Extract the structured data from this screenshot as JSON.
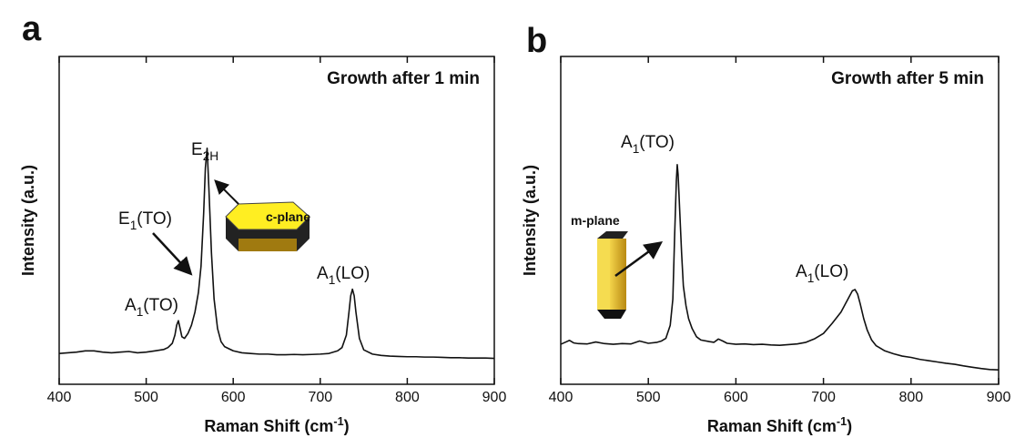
{
  "chart_data": [
    {
      "type": "line",
      "panel_label": "a",
      "title": "Growth after 1 min",
      "x_label": {
        "text": "Raman Shift (cm",
        "superscript": "-1",
        "suffix": ")"
      },
      "y_label": "Intensity (a.u.)",
      "xlim": [
        400,
        900
      ],
      "xticks": [
        400,
        500,
        600,
        700,
        800,
        900
      ],
      "ylim": [
        0,
        100
      ],
      "color": "#111111",
      "x": [
        400,
        410,
        420,
        430,
        440,
        450,
        460,
        470,
        480,
        490,
        500,
        510,
        520,
        525,
        530,
        533,
        535,
        537,
        539,
        541,
        544,
        548,
        552,
        556,
        560,
        563,
        566,
        568,
        570,
        572,
        575,
        578,
        582,
        586,
        590,
        600,
        610,
        620,
        630,
        640,
        650,
        660,
        670,
        680,
        690,
        700,
        710,
        720,
        725,
        730,
        733,
        735,
        737,
        739,
        741,
        745,
        750,
        760,
        770,
        780,
        790,
        800,
        810,
        820,
        830,
        840,
        850,
        860,
        870,
        880,
        890,
        900
      ],
      "values": [
        9.4,
        9.6,
        9.8,
        10.2,
        10.2,
        9.8,
        9.6,
        9.8,
        10.0,
        9.6,
        9.8,
        10.2,
        10.6,
        11.2,
        12.5,
        15,
        18,
        19.4,
        17,
        14.5,
        14,
        15.5,
        18,
        22,
        28,
        36,
        52,
        66,
        72,
        60,
        40,
        26,
        17,
        13,
        11.5,
        10.2,
        9.6,
        9.4,
        9.2,
        9.2,
        9.0,
        9.0,
        9.1,
        9.0,
        9.1,
        9.2,
        9.4,
        10.2,
        11.2,
        15,
        22,
        27,
        29,
        27,
        22,
        14,
        10.5,
        9.2,
        8.8,
        8.6,
        8.5,
        8.4,
        8.4,
        8.3,
        8.3,
        8.2,
        8.1,
        8.1,
        8.0,
        8.0,
        8.0,
        7.9
      ],
      "annotations": [
        {
          "text": "E",
          "subscript": "2H",
          "suffix": ""
        },
        {
          "text": "E",
          "subscript": "1",
          "suffix": "(TO)"
        },
        {
          "text": "A",
          "subscript": "1",
          "suffix": "(TO)"
        },
        {
          "text": "A",
          "subscript": "1",
          "suffix": "(LO)"
        },
        {
          "text": "c-plane"
        }
      ]
    },
    {
      "type": "line",
      "panel_label": "b",
      "title": "Growth after 5 min",
      "x_label": {
        "text": "Raman Shift (cm",
        "superscript": "-1",
        "suffix": ")"
      },
      "y_label": "Intensity (a.u.)",
      "xlim": [
        400,
        900
      ],
      "xticks": [
        400,
        500,
        600,
        700,
        800,
        900
      ],
      "ylim": [
        0,
        100
      ],
      "color": "#111111",
      "x": [
        400,
        405,
        410,
        415,
        420,
        430,
        440,
        450,
        460,
        470,
        480,
        490,
        500,
        510,
        515,
        520,
        525,
        528,
        530,
        532,
        533,
        534,
        536,
        538,
        540,
        543,
        546,
        550,
        555,
        560,
        570,
        575,
        580,
        585,
        590,
        600,
        610,
        620,
        630,
        640,
        650,
        660,
        670,
        680,
        690,
        700,
        710,
        720,
        725,
        730,
        733,
        736,
        739,
        742,
        746,
        750,
        755,
        760,
        770,
        780,
        790,
        800,
        810,
        820,
        830,
        840,
        850,
        860,
        870,
        880,
        890,
        900
      ],
      "values": [
        12.2,
        12.8,
        13.4,
        12.6,
        12.4,
        12.3,
        12.9,
        12.4,
        12.2,
        12.4,
        12.3,
        13.2,
        12.5,
        12.8,
        13.2,
        14,
        18,
        26,
        45,
        62,
        67,
        64,
        52,
        40,
        30,
        24,
        20,
        17,
        14.5,
        13.5,
        13,
        12.8,
        13.8,
        13.2,
        12.5,
        12.2,
        12.3,
        12.1,
        12.2,
        12.0,
        11.9,
        12.1,
        12.3,
        12.8,
        13.9,
        15.5,
        18.6,
        22,
        24.5,
        27,
        28.5,
        28.9,
        27.5,
        24.5,
        20,
        16.5,
        13.5,
        11.8,
        10.2,
        9.3,
        8.6,
        8.2,
        7.6,
        7.2,
        6.8,
        6.4,
        6.1,
        5.6,
        5.2,
        4.8,
        4.5,
        4.4
      ],
      "annotations": [
        {
          "text": "A",
          "subscript": "1",
          "suffix": "(TO)"
        },
        {
          "text": "A",
          "subscript": "1",
          "suffix": "(LO)"
        },
        {
          "text": "m-plane"
        }
      ]
    }
  ]
}
